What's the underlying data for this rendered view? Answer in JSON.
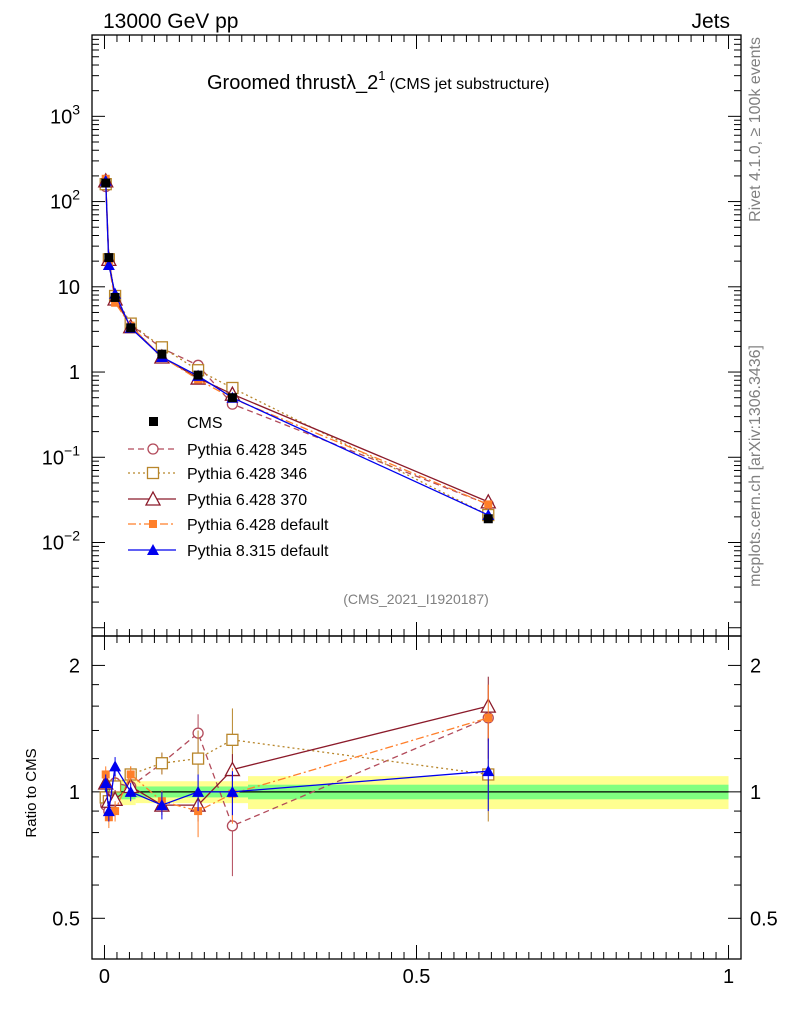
{
  "header": {
    "left": "13000 GeV pp",
    "right": "Jets",
    "title_main": "Groomed thrustλ_2",
    "title_sup": "1",
    "title_sub": "(CMS jet substructure)"
  },
  "side": {
    "rivet": "Rivet 4.1.0, ≥ 100k events",
    "mcplots": "mcplots.cern.ch [arXiv:1306.3436]"
  },
  "analysis_id": "(CMS_2021_I1920187)",
  "colors": {
    "cms": "#000000",
    "p345": "#b24a5a",
    "p346": "#b8862b",
    "p370": "#8b1a2a",
    "p6def": "#ff7f2a",
    "p8": "#0000ee",
    "band_inner": "#80ff80",
    "band_outer": "#ffff90"
  },
  "chart_data": [
    {
      "type": "line",
      "title": "Groomed thrustλ_2^1 (CMS jet substructure)",
      "xlabel": "",
      "ylabel": "",
      "yscale": "log",
      "xlim": [
        -0.02,
        1.02
      ],
      "ylim": [
        0.0008,
        9000
      ],
      "yticks": [
        {
          "v": 1000,
          "base": "10",
          "exp": "3"
        },
        {
          "v": 100,
          "base": "10",
          "exp": "2"
        },
        {
          "v": 10,
          "base": "10",
          "exp": ""
        },
        {
          "v": 1,
          "base": "1",
          "exp": ""
        },
        {
          "v": 0.1,
          "base": "10",
          "exp": "−1"
        },
        {
          "v": 0.01,
          "base": "10",
          "exp": "−2"
        }
      ],
      "x": [
        0.002,
        0.007,
        0.017,
        0.042,
        0.092,
        0.15,
        0.205,
        0.615
      ],
      "series": [
        {
          "name": "CMS",
          "key": "cms",
          "values": [
            165,
            22,
            7.5,
            3.3,
            1.62,
            0.92,
            0.5,
            0.019
          ],
          "marker": "square"
        },
        {
          "name": "Pythia 6.428 345",
          "key": "p345",
          "values": [
            150,
            20,
            7.0,
            3.6,
            1.9,
            1.2,
            0.42,
            0.028
          ],
          "marker": "circle-open",
          "dash": "6,4"
        },
        {
          "name": "Pythia 6.428 346",
          "key": "p346",
          "values": [
            160,
            21,
            7.8,
            3.7,
            1.95,
            1.05,
            0.65,
            0.021
          ],
          "marker": "square-open",
          "dash": "2,3"
        },
        {
          "name": "Pythia 6.428 370",
          "key": "p370",
          "values": [
            175,
            21,
            7.2,
            3.4,
            1.5,
            0.85,
            0.55,
            0.03
          ],
          "marker": "triangle-open",
          "dash": ""
        },
        {
          "name": "Pythia 6.428 default",
          "key": "p6def",
          "values": [
            185,
            19,
            6.5,
            3.5,
            1.5,
            0.82,
            0.49,
            0.028
          ],
          "marker": "square-small",
          "dash": "8,3,2,3"
        },
        {
          "name": "Pythia 8.315 default",
          "key": "p8",
          "values": [
            175,
            18,
            8.3,
            3.3,
            1.5,
            0.9,
            0.5,
            0.021
          ],
          "marker": "triangle",
          "dash": ""
        }
      ]
    },
    {
      "type": "line",
      "ylabel": "Ratio to CMS",
      "xlim": [
        -0.02,
        1.02
      ],
      "ylim": [
        0.4,
        2.35
      ],
      "xticks": [
        "0",
        "0.5",
        "1"
      ],
      "yticks": [
        "0.5",
        "1",
        "2"
      ],
      "band": [
        {
          "x0": 0.0,
          "x1": 0.05,
          "inner": 0.04,
          "outer": 0.07
        },
        {
          "x0": 0.05,
          "x1": 0.23,
          "inner": 0.03,
          "outer": 0.06
        },
        {
          "x0": 0.23,
          "x1": 1.0,
          "inner": 0.04,
          "outer": 0.09
        }
      ],
      "ratios": {
        "p345": [
          0.93,
          0.9,
          1.05,
          1.03,
          1.17,
          1.38,
          0.83,
          1.5
        ],
        "p346": [
          0.97,
          0.95,
          1.03,
          1.1,
          1.17,
          1.2,
          1.33,
          1.1
        ],
        "p370": [
          1.05,
          0.95,
          0.96,
          1.03,
          0.93,
          0.93,
          1.13,
          1.6
        ],
        "p6def": [
          1.1,
          0.87,
          0.9,
          1.1,
          0.95,
          0.9,
          0.99,
          1.5
        ],
        "p8": [
          1.05,
          0.9,
          1.15,
          1.0,
          0.93,
          1.0,
          1.0,
          1.12
        ]
      },
      "ratio_errors": {
        "p345": [
          0.05,
          0.05,
          0.05,
          0.06,
          0.07,
          0.15,
          0.2,
          0.3
        ],
        "p346": [
          0.05,
          0.05,
          0.05,
          0.05,
          0.07,
          0.2,
          0.25,
          0.25
        ],
        "p370": [
          0.05,
          0.05,
          0.05,
          0.05,
          0.05,
          0.08,
          0.1,
          0.28
        ],
        "p6def": [
          0.05,
          0.05,
          0.05,
          0.05,
          0.06,
          0.12,
          0.15,
          0.3
        ],
        "p8": [
          0.05,
          0.05,
          0.06,
          0.05,
          0.07,
          0.1,
          0.12,
          0.22
        ]
      }
    }
  ]
}
